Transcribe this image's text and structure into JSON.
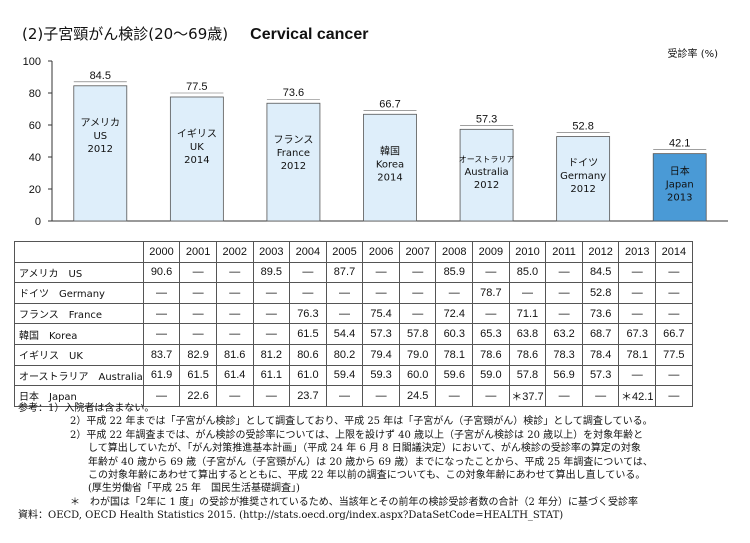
{
  "title_jp": "(2)子宮頸がん検診(20〜69歳)",
  "title_en": "Cervical cancer",
  "unit": "受診率 (%)",
  "chart_data": {
    "type": "bar",
    "title": "(2)子宮頸がん検診(20〜69歳) Cervical cancer",
    "ylabel": "受診率 (%)",
    "ylim": [
      0,
      100
    ],
    "yticks": [
      0,
      20,
      40,
      60,
      80,
      100
    ],
    "grid": false,
    "categories": [
      "アメリカ US 2012",
      "イギリス UK 2014",
      "フランス France 2012",
      "韓国 Korea 2014",
      "オーストラリア Australia 2012",
      "ドイツ Germany 2012",
      "日本 Japan 2013"
    ],
    "bars": [
      {
        "lines": [
          "アメリカ",
          "US",
          "2012"
        ],
        "value": 84.5,
        "value_label": "84.5",
        "color": "#deeefa"
      },
      {
        "lines": [
          "イギリス",
          "UK",
          "2014"
        ],
        "value": 77.5,
        "value_label": "77.5",
        "color": "#deeefa"
      },
      {
        "lines": [
          "フランス",
          "France",
          "2012"
        ],
        "value": 73.6,
        "value_label": "73.6",
        "color": "#deeefa"
      },
      {
        "lines": [
          "韓国",
          "Korea",
          "2014"
        ],
        "value": 66.7,
        "value_label": "66.7",
        "color": "#deeefa"
      },
      {
        "lines": [
          "オーストラリア",
          "Australia",
          "2012"
        ],
        "value": 57.3,
        "value_label": "57.3",
        "color": "#deeefa"
      },
      {
        "lines": [
          "ドイツ",
          "Germany",
          "2012"
        ],
        "value": 52.8,
        "value_label": "52.8",
        "color": "#deeefa"
      },
      {
        "lines": [
          "日本",
          "Japan",
          "2013"
        ],
        "value": 42.1,
        "value_label": "42.1",
        "color": "#4a9ad6"
      }
    ]
  },
  "table": {
    "years": [
      "2000",
      "2001",
      "2002",
      "2003",
      "2004",
      "2005",
      "2006",
      "2007",
      "2008",
      "2009",
      "2010",
      "2011",
      "2012",
      "2013",
      "2014"
    ],
    "rows": [
      {
        "label": "アメリカ　US",
        "values": [
          "90.6",
          "―",
          "―",
          "89.5",
          "―",
          "87.7",
          "―",
          "―",
          "85.9",
          "―",
          "85.0",
          "―",
          "84.5",
          "―",
          "―"
        ]
      },
      {
        "label": "ドイツ　Germany",
        "values": [
          "―",
          "―",
          "―",
          "―",
          "―",
          "―",
          "―",
          "―",
          "―",
          "78.7",
          "―",
          "―",
          "52.8",
          "―",
          "―"
        ]
      },
      {
        "label": "フランス　France",
        "values": [
          "―",
          "―",
          "―",
          "―",
          "76.3",
          "―",
          "75.4",
          "―",
          "72.4",
          "―",
          "71.1",
          "―",
          "73.6",
          "―",
          "―"
        ]
      },
      {
        "label": "韓国　Korea",
        "values": [
          "―",
          "―",
          "―",
          "―",
          "61.5",
          "54.4",
          "57.3",
          "57.8",
          "60.3",
          "65.3",
          "63.8",
          "63.2",
          "68.7",
          "67.3",
          "66.7"
        ]
      },
      {
        "label": "イギリス　UK",
        "values": [
          "83.7",
          "82.9",
          "81.6",
          "81.2",
          "80.6",
          "80.2",
          "79.4",
          "79.0",
          "78.1",
          "78.6",
          "78.6",
          "78.3",
          "78.4",
          "78.1",
          "77.5"
        ]
      },
      {
        "label": "オーストラリア　Australia",
        "values": [
          "61.9",
          "61.5",
          "61.4",
          "61.1",
          "61.0",
          "59.4",
          "59.3",
          "60.0",
          "59.6",
          "59.0",
          "57.8",
          "56.9",
          "57.3",
          "―",
          "―"
        ]
      },
      {
        "label": "日本　Japan",
        "values": [
          "―",
          "22.6",
          "―",
          "―",
          "23.7",
          "―",
          "―",
          "24.5",
          "―",
          "―",
          "＊37.7",
          "―",
          "―",
          "＊42.1",
          "―"
        ]
      }
    ]
  },
  "notes": {
    "n1": "参考：1）入院者は含まない。",
    "n2": "2）平成 22 年までは「子宮がん検診」として調査しており、平成 25 年は「子宮がん（子宮頸がん）検診」として調査している。",
    "n3a": "2）平成 22 年調査までは、がん検診の受診率については、上限を設けず 40 歳以上（子宮がん検診は 20 歳以上）を対象年齢と",
    "n3b": "して算出していたが、「がん対策推進基本計画」（平成 24 年 6 月 8 日閣議決定）において、がん検診の受診率の算定の対象",
    "n3c": "年齢が 40 歳から 69 歳（子宮がん（子宮頸がん）は 20 歳から 69 歳）までになったことから、平成 25 年調査については、",
    "n3d": "この対象年齢にあわせて算出するとともに、平成 22 年以前の調査についても、この対象年齢にあわせて算出し直している。",
    "n3e": "(厚生労働省「平成 25 年　国民生活基礎調査」)",
    "n4": "＊　わが国は「2年に 1 度」の受診が推奨されているため、当該年とその前年の検診受診者数の合計（2 年分）に基づく受診率",
    "source": "資料：OECD, OECD Health Statistics 2015. (http://stats.oecd.org/index.aspx?DataSetCode=HEALTH_STAT)"
  }
}
